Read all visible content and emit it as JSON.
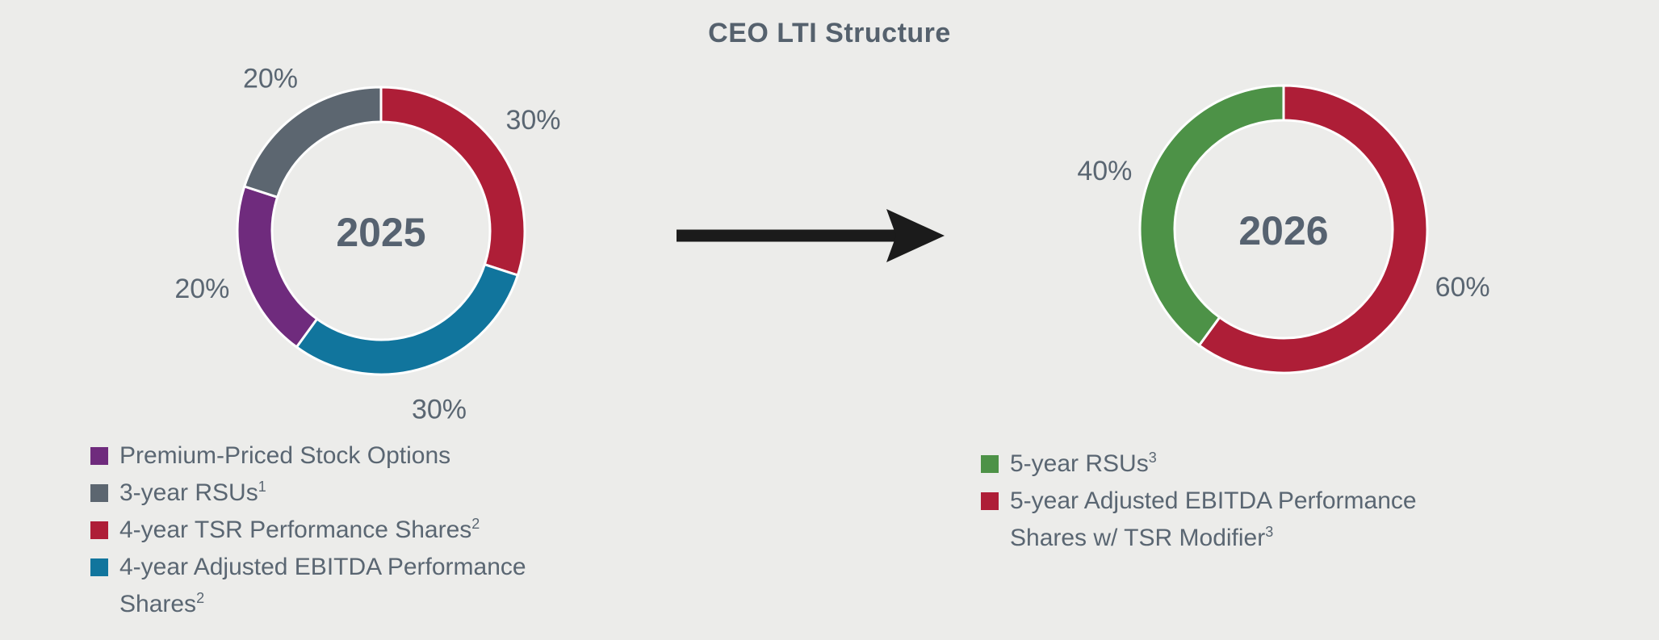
{
  "title": "CEO LTI Structure",
  "palette": {
    "background": "#ECECEA",
    "text": "#5A6672",
    "title_text": "#55616D",
    "arrow": "#1B1B1B",
    "red": "#AE1E37",
    "blue": "#11759D",
    "purple": "#6F2B7D",
    "gray": "#5C6670",
    "green": "#4D9247"
  },
  "chart_data": [
    {
      "type": "pie",
      "subtype": "donut",
      "id": "2025",
      "center_label": "2025",
      "start_angle_deg": 0,
      "direction": "clockwise",
      "segments": [
        {
          "name": "4-year TSR Performance Shares",
          "value": 30,
          "display": "30%",
          "color": "#AE1E37"
        },
        {
          "name": "4-year Adjusted EBITDA Performance Shares",
          "value": 30,
          "display": "30%",
          "color": "#11759D"
        },
        {
          "name": "Premium-Priced Stock Options",
          "value": 20,
          "display": "20%",
          "color": "#6F2B7D"
        },
        {
          "name": "3-year RSUs",
          "value": 20,
          "display": "20%",
          "color": "#5C6670"
        }
      ],
      "legend_position": "bottom-left",
      "legend": [
        {
          "text": "Premium-Priced Stock Options",
          "sup": "",
          "color": "#6F2B7D"
        },
        {
          "text": "3-year RSUs",
          "sup": "1",
          "color": "#5C6670"
        },
        {
          "text": "4-year TSR Performance Shares",
          "sup": "2",
          "color": "#AE1E37"
        },
        {
          "text": "4-year Adjusted EBITDA Performance Shares",
          "sup": "2",
          "color": "#11759D"
        }
      ]
    },
    {
      "type": "pie",
      "subtype": "donut",
      "id": "2026",
      "center_label": "2026",
      "start_angle_deg": 0,
      "direction": "clockwise",
      "segments": [
        {
          "name": "5-year Adjusted EBITDA Performance Shares w/ TSR Modifier",
          "value": 60,
          "display": "60%",
          "color": "#AE1E37"
        },
        {
          "name": "5-year RSUs",
          "value": 40,
          "display": "40%",
          "color": "#4D9247"
        }
      ],
      "legend_position": "bottom-right",
      "legend": [
        {
          "text": "5-year RSUs",
          "sup": "3",
          "color": "#4D9247"
        },
        {
          "text": "5-year Adjusted EBITDA Performance Shares w/ TSR Modifier",
          "sup": "3",
          "color": "#AE1E37"
        }
      ]
    }
  ]
}
